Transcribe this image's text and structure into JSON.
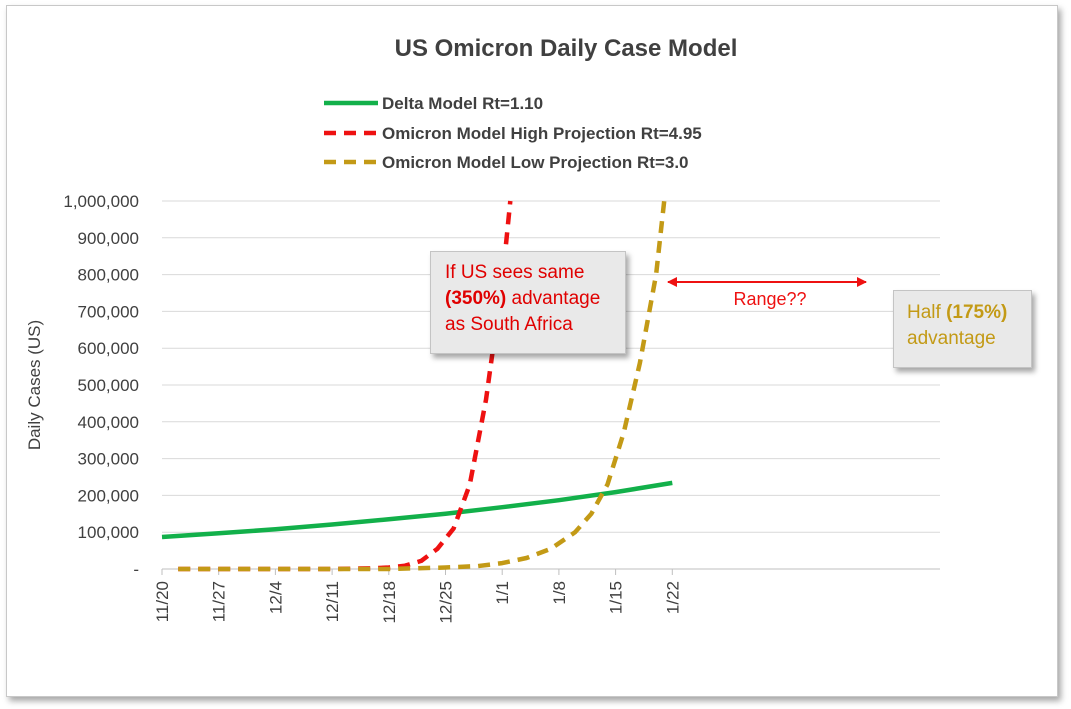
{
  "chart_data": {
    "type": "line",
    "title": "US Omicron Daily Case Model",
    "ylabel": "Daily Cases (US)",
    "xlabel": "",
    "ylim": [
      0,
      1000000
    ],
    "y_ticks": [
      "-",
      "100,000",
      "200,000",
      "300,000",
      "400,000",
      "500,000",
      "600,000",
      "700,000",
      "800,000",
      "900,000",
      "1,000,000"
    ],
    "x_ticks": [
      "11/20",
      "11/27",
      "12/4",
      "12/11",
      "12/18",
      "12/25",
      "1/1",
      "1/8",
      "1/15",
      "1/22"
    ],
    "grid": "horizontal",
    "legend_position": "top",
    "series": [
      {
        "name": "Delta Model Rt=1.10",
        "color": "#12b04a",
        "style": "solid",
        "points": [
          [
            "11/20",
            87000
          ],
          [
            "11/27",
            97000
          ],
          [
            "12/4",
            108000
          ],
          [
            "12/11",
            121000
          ],
          [
            "12/18",
            135000
          ],
          [
            "12/25",
            150000
          ],
          [
            "1/1",
            168000
          ],
          [
            "1/8",
            187000
          ],
          [
            "1/15",
            209000
          ],
          [
            "1/22",
            234000
          ]
        ]
      },
      {
        "name": "Omicron Model High Projection Rt=4.95",
        "color": "#ee1111",
        "style": "dashed",
        "points": [
          [
            "11/22",
            0
          ],
          [
            "12/11",
            0
          ],
          [
            "12/16",
            2000
          ],
          [
            "12/18",
            4000
          ],
          [
            "12/20",
            9000
          ],
          [
            "12/22",
            22000
          ],
          [
            "12/24",
            55000
          ],
          [
            "12/26",
            110000
          ],
          [
            "12/28",
            230000
          ],
          [
            "12/30",
            460000
          ],
          [
            "1/1",
            780000
          ],
          [
            "1/2",
            1000000
          ]
        ]
      },
      {
        "name": "Omicron Model Low Projection Rt=3.0",
        "color": "#c39a16",
        "style": "dashed",
        "points": [
          [
            "11/22",
            0
          ],
          [
            "12/18",
            0
          ],
          [
            "12/25",
            4000
          ],
          [
            "12/29",
            8000
          ],
          [
            "1/1",
            16000
          ],
          [
            "1/4",
            30000
          ],
          [
            "1/7",
            55000
          ],
          [
            "1/10",
            100000
          ],
          [
            "1/12",
            150000
          ],
          [
            "1/14",
            230000
          ],
          [
            "1/16",
            370000
          ],
          [
            "1/18",
            560000
          ],
          [
            "1/20",
            800000
          ],
          [
            "1/21",
            1000000
          ]
        ]
      }
    ],
    "annotations": {
      "range_label": "Range??",
      "high_callout": {
        "line1": "If US sees same",
        "bold": "(350%)",
        "line2_rest": " advantage",
        "line3": "as South Africa"
      },
      "low_callout": {
        "prefix": "Half ",
        "bold": "(175%)",
        "line2": "advantage"
      }
    }
  }
}
